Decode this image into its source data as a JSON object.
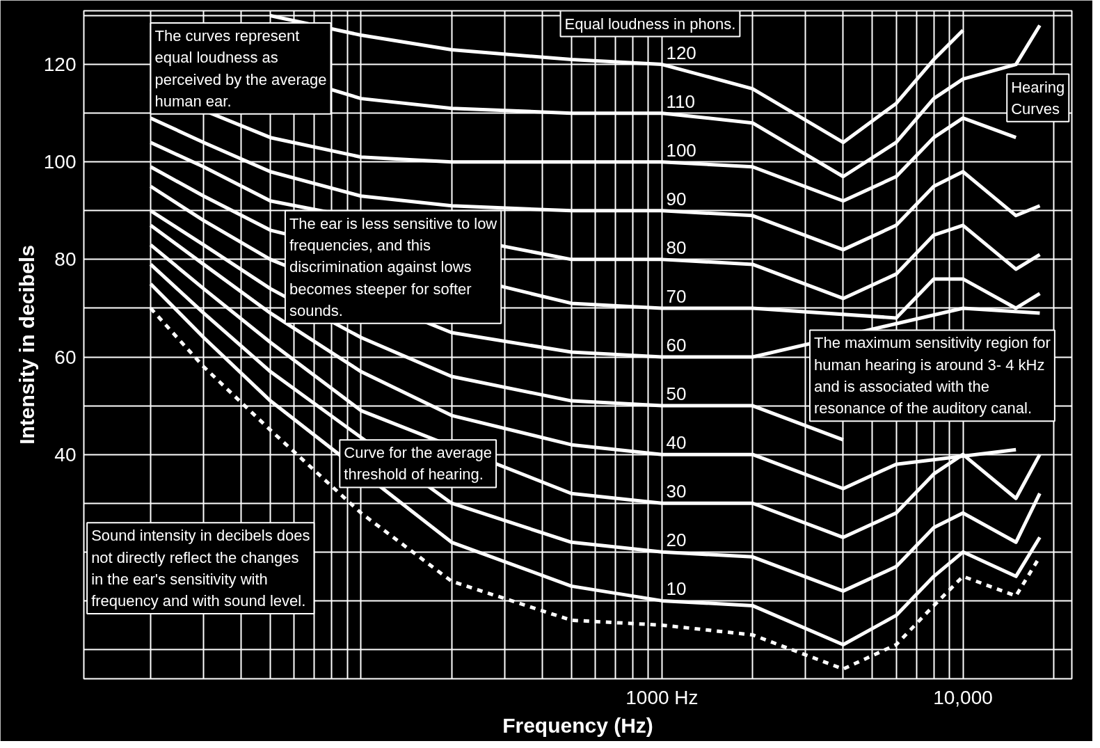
{
  "chart_data": {
    "type": "line",
    "xlabel": "Frequency (Hz)",
    "ylabel": "Intensity in decibels",
    "log": "x",
    "grid": true,
    "xlim": [
      12,
      23000
    ],
    "ylim": [
      -6,
      131
    ],
    "xticks": [
      {
        "value": 20,
        "label": null
      },
      {
        "value": 30,
        "label": null
      },
      {
        "value": 40,
        "label": null
      },
      {
        "value": 50,
        "label": null
      },
      {
        "value": 60,
        "label": null
      },
      {
        "value": 70,
        "label": null
      },
      {
        "value": 80,
        "label": null
      },
      {
        "value": 90,
        "label": null
      },
      {
        "value": 100,
        "label": null
      },
      {
        "value": 200,
        "label": null
      },
      {
        "value": 300,
        "label": null
      },
      {
        "value": 400,
        "label": null
      },
      {
        "value": 500,
        "label": null
      },
      {
        "value": 600,
        "label": null
      },
      {
        "value": 700,
        "label": null
      },
      {
        "value": 800,
        "label": null
      },
      {
        "value": 900,
        "label": null
      },
      {
        "value": 1000,
        "label": "1000 Hz"
      },
      {
        "value": 2000,
        "label": null
      },
      {
        "value": 3000,
        "label": null
      },
      {
        "value": 4000,
        "label": null
      },
      {
        "value": 5000,
        "label": null
      },
      {
        "value": 6000,
        "label": null
      },
      {
        "value": 7000,
        "label": null
      },
      {
        "value": 8000,
        "label": null
      },
      {
        "value": 9000,
        "label": null
      },
      {
        "value": 10000,
        "label": "10,000"
      },
      {
        "value": 20000,
        "label": null
      }
    ],
    "yticks": [
      {
        "value": 0,
        "label": null
      },
      {
        "value": 10,
        "label": null
      },
      {
        "value": 20,
        "label": null
      },
      {
        "value": 30,
        "label": null
      },
      40,
      {
        "value": 50,
        "label": null
      },
      60,
      {
        "value": 70,
        "label": null
      },
      80,
      {
        "value": 90,
        "label": null
      },
      100,
      {
        "value": 110,
        "label": null
      },
      120,
      {
        "value": 130,
        "label": null
      }
    ],
    "x": [
      20,
      30,
      50,
      100,
      200,
      500,
      1000,
      2000,
      4000,
      6000,
      8000,
      10000,
      15000,
      18000
    ],
    "series": [
      {
        "color": "#ffffff",
        "line_style": "dashed",
        "values": [
          70,
          58,
          45,
          28,
          14,
          6,
          5,
          3,
          -4,
          1,
          9,
          15,
          11,
          19
        ]
      },
      {
        "name": "10",
        "color": "#ffffff",
        "values": [
          75,
          64,
          51,
          null,
          22,
          13,
          10,
          9,
          1,
          7,
          15,
          20,
          15,
          23
        ]
      },
      {
        "name": "20",
        "color": "#ffffff",
        "values": [
          79,
          69,
          57,
          null,
          30,
          22,
          20,
          19,
          12,
          17,
          25,
          28,
          22,
          32
        ]
      },
      {
        "name": "30",
        "color": "#ffffff",
        "values": [
          83,
          74,
          63,
          49,
          null,
          32,
          30,
          30,
          23,
          28,
          36,
          40,
          31,
          40
        ]
      },
      {
        "name": "40",
        "color": "#ffffff",
        "values": [
          87,
          79,
          69,
          57,
          48,
          42,
          40,
          40,
          33,
          38,
          null,
          null,
          41,
          null
        ]
      },
      {
        "name": "50",
        "color": "#ffffff",
        "values": [
          90,
          83,
          74,
          64,
          56,
          51,
          50,
          50,
          43,
          null,
          null,
          null,
          null,
          null
        ]
      },
      {
        "name": "60",
        "color": "#ffffff",
        "values": [
          95,
          88,
          80,
          null,
          65,
          61,
          60,
          60,
          null,
          null,
          null,
          70,
          null,
          69
        ]
      },
      {
        "name": "70",
        "color": "#ffffff",
        "values": [
          99,
          93,
          86,
          null,
          null,
          71,
          70,
          70,
          null,
          68,
          76,
          76,
          70,
          73
        ]
      },
      {
        "name": "80",
        "color": "#ffffff",
        "values": [
          104,
          99,
          92,
          null,
          null,
          80,
          80,
          79,
          72,
          77,
          85,
          87,
          78,
          81
        ]
      },
      {
        "name": "90",
        "color": "#ffffff",
        "values": [
          109,
          104,
          98,
          93,
          91,
          90,
          90,
          89,
          82,
          87,
          95,
          98,
          89,
          91
        ]
      },
      {
        "name": "100",
        "color": "#ffffff",
        "values": [
          115,
          null,
          105,
          101,
          100,
          100,
          100,
          99,
          92,
          97,
          105,
          109,
          105,
          null
        ]
      },
      {
        "name": "110",
        "color": "#ffffff",
        "values": [
          126,
          null,
          null,
          113,
          111,
          110,
          110,
          108,
          97,
          104,
          113,
          117,
          120,
          128
        ]
      },
      {
        "name": "120",
        "color": "#ffffff",
        "values": [
          null,
          null,
          130,
          126,
          123,
          121,
          120,
          115,
          104,
          112,
          121,
          127,
          null,
          null
        ]
      }
    ],
    "annotations": [
      "The curves represent equal loudness as perceived by the average human ear.",
      "The ear is less sensitive to low frequencies, and this discrimination against lows becomes steeper for softer sounds.",
      "Curve for the average threshold of hearing.",
      "Sound intensity in decibels does not directly reflect the changes in the ear's sensitivity with frequency and with sound level.",
      "The maximum sensitivity region for human hearing is around 3- 4 kHz and is associated with the resonance of the auditory canal.",
      "Hearing Curves",
      "Equal loudness in phons."
    ]
  }
}
